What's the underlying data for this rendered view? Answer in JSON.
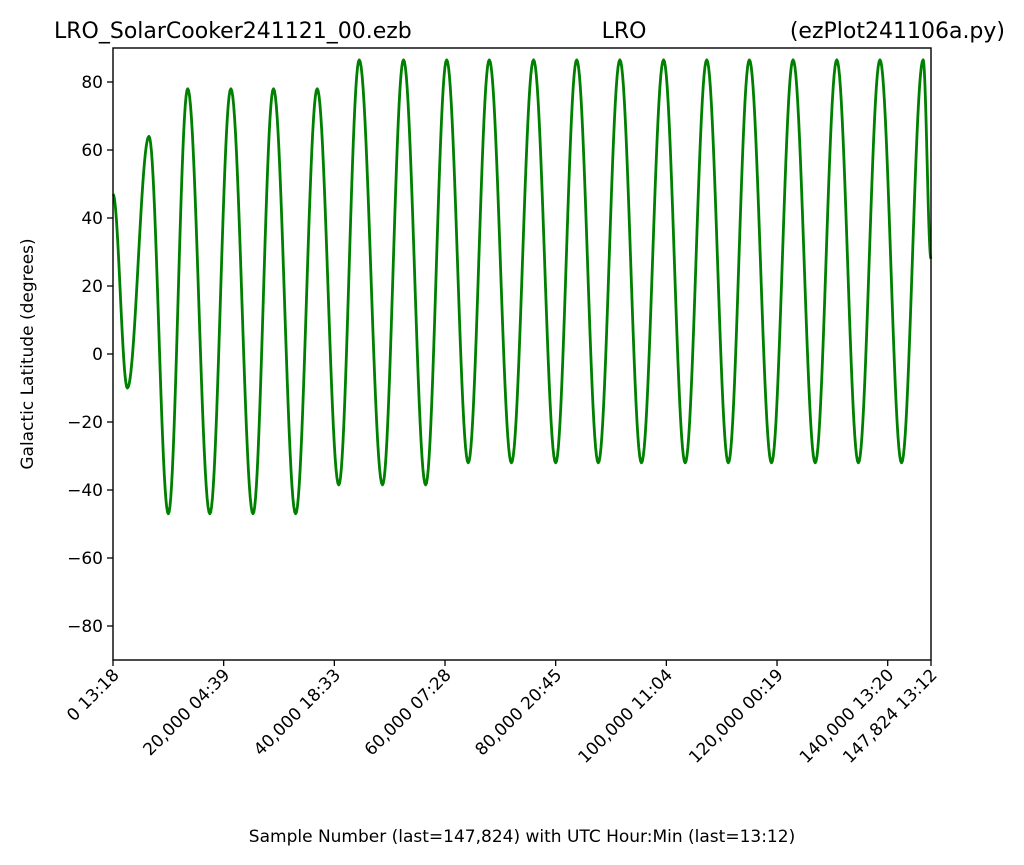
{
  "chart_data": {
    "type": "line",
    "title_left": "LRO_SolarCooker241121_00.ezb",
    "title_center": "LRO",
    "title_right": "(ezPlot241106a.py)",
    "xlabel": "Sample Number (last=147,824) with UTC Hour:Min (last=13:12)",
    "ylabel": "Galactic Latitude (degrees)",
    "xlim": [
      0,
      147824
    ],
    "ylim": [
      -90,
      90
    ],
    "y_ticks": [
      80,
      60,
      40,
      20,
      0,
      -20,
      -40,
      -60,
      -80
    ],
    "y_tick_labels": [
      "80",
      "60",
      "40",
      "20",
      "0",
      "−20",
      "−40",
      "−60",
      "−80"
    ],
    "x_ticks": [
      {
        "x": 0,
        "label": "0  13:18"
      },
      {
        "x": 20000,
        "label": "20,000  04:39"
      },
      {
        "x": 40000,
        "label": "40,000  18:33"
      },
      {
        "x": 60000,
        "label": "60,000  07:28"
      },
      {
        "x": 80000,
        "label": "80,000  20:45"
      },
      {
        "x": 100000,
        "label": "100,000  11:04"
      },
      {
        "x": 120000,
        "label": "120,000  00:19"
      },
      {
        "x": 140000,
        "label": "140,000  13:20"
      },
      {
        "x": 147824,
        "label": "147,824  13:12"
      }
    ],
    "grid": false,
    "line_color": "#008000",
    "series": [
      {
        "points": [
          [
            0,
            47
          ],
          [
            2600,
            -10
          ],
          [
            6500,
            64
          ],
          [
            10000,
            -47
          ],
          [
            13500,
            78
          ],
          [
            17500,
            -47
          ],
          [
            21300,
            78
          ],
          [
            25300,
            -47
          ],
          [
            29000,
            78
          ],
          [
            33000,
            -47
          ],
          [
            36900,
            78
          ],
          [
            40800,
            -38.5
          ],
          [
            44500,
            86.5
          ],
          [
            48700,
            -38.5
          ],
          [
            52500,
            86.5
          ],
          [
            56500,
            -38.5
          ],
          [
            60300,
            86.5
          ],
          [
            64200,
            -32
          ],
          [
            68000,
            86.5
          ],
          [
            72000,
            -32
          ],
          [
            76000,
            86.5
          ],
          [
            80000,
            -32
          ],
          [
            83800,
            86.5
          ],
          [
            87700,
            -32
          ],
          [
            91600,
            86.5
          ],
          [
            95500,
            -32
          ],
          [
            99500,
            86.5
          ],
          [
            103400,
            -32
          ],
          [
            107300,
            86.5
          ],
          [
            111200,
            -32
          ],
          [
            115000,
            86.5
          ],
          [
            119000,
            -32
          ],
          [
            122900,
            86.5
          ],
          [
            126900,
            -32
          ],
          [
            130800,
            86.5
          ],
          [
            134700,
            -32
          ],
          [
            138600,
            86.5
          ],
          [
            142500,
            -32
          ],
          [
            146400,
            86.5
          ],
          [
            147824,
            28
          ]
        ]
      }
    ]
  }
}
